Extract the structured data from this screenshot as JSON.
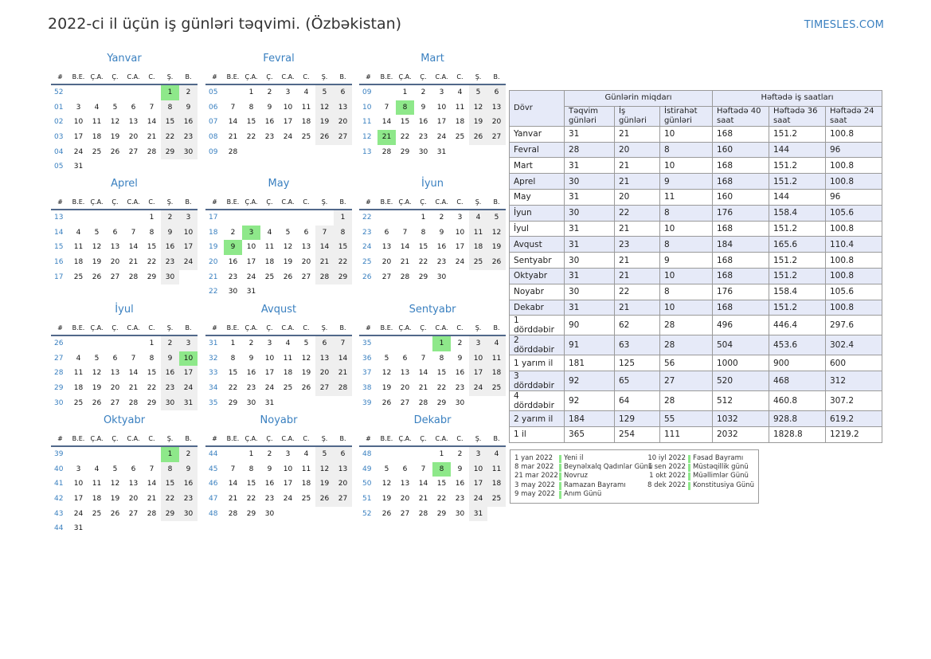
{
  "header": {
    "title": "2022-ci il üçün iş günləri təqvimi. (Özbəkistan)",
    "site": "TIMESLES.COM"
  },
  "weekday_headers": [
    "#",
    "B.E.",
    "Ç.A.",
    "Ç.",
    "C.A.",
    "C.",
    "Ş.",
    "B."
  ],
  "months": [
    {
      "name": "Yanvar",
      "rows": [
        [
          "52",
          "",
          "",
          "",
          "",
          "",
          "1",
          "2"
        ],
        [
          "01",
          "3",
          "4",
          "5",
          "6",
          "7",
          "8",
          "9"
        ],
        [
          "02",
          "10",
          "11",
          "12",
          "13",
          "14",
          "15",
          "16"
        ],
        [
          "03",
          "17",
          "18",
          "19",
          "20",
          "21",
          "22",
          "23"
        ],
        [
          "04",
          "24",
          "25",
          "26",
          "27",
          "28",
          "29",
          "30"
        ],
        [
          "05",
          "31",
          "",
          "",
          "",
          "",
          "",
          ""
        ]
      ],
      "holidays": [
        "1"
      ]
    },
    {
      "name": "Fevral",
      "rows": [
        [
          "05",
          "",
          "1",
          "2",
          "3",
          "4",
          "5",
          "6"
        ],
        [
          "06",
          "7",
          "8",
          "9",
          "10",
          "11",
          "12",
          "13"
        ],
        [
          "07",
          "14",
          "15",
          "16",
          "17",
          "18",
          "19",
          "20"
        ],
        [
          "08",
          "21",
          "22",
          "23",
          "24",
          "25",
          "26",
          "27"
        ],
        [
          "09",
          "28",
          "",
          "",
          "",
          "",
          "",
          ""
        ]
      ],
      "holidays": []
    },
    {
      "name": "Mart",
      "rows": [
        [
          "09",
          "",
          "1",
          "2",
          "3",
          "4",
          "5",
          "6"
        ],
        [
          "10",
          "7",
          "8",
          "9",
          "10",
          "11",
          "12",
          "13"
        ],
        [
          "11",
          "14",
          "15",
          "16",
          "17",
          "18",
          "19",
          "20"
        ],
        [
          "12",
          "21",
          "22",
          "23",
          "24",
          "25",
          "26",
          "27"
        ],
        [
          "13",
          "28",
          "29",
          "30",
          "31",
          "",
          "",
          ""
        ]
      ],
      "holidays": [
        "8",
        "21"
      ]
    },
    {
      "name": "Aprel",
      "rows": [
        [
          "13",
          "",
          "",
          "",
          "",
          "1",
          "2",
          "3"
        ],
        [
          "14",
          "4",
          "5",
          "6",
          "7",
          "8",
          "9",
          "10"
        ],
        [
          "15",
          "11",
          "12",
          "13",
          "14",
          "15",
          "16",
          "17"
        ],
        [
          "16",
          "18",
          "19",
          "20",
          "21",
          "22",
          "23",
          "24"
        ],
        [
          "17",
          "25",
          "26",
          "27",
          "28",
          "29",
          "30",
          ""
        ]
      ],
      "holidays": []
    },
    {
      "name": "May",
      "rows": [
        [
          "17",
          "",
          "",
          "",
          "",
          "",
          "",
          "1"
        ],
        [
          "18",
          "2",
          "3",
          "4",
          "5",
          "6",
          "7",
          "8"
        ],
        [
          "19",
          "9",
          "10",
          "11",
          "12",
          "13",
          "14",
          "15"
        ],
        [
          "20",
          "16",
          "17",
          "18",
          "19",
          "20",
          "21",
          "22"
        ],
        [
          "21",
          "23",
          "24",
          "25",
          "26",
          "27",
          "28",
          "29"
        ],
        [
          "22",
          "30",
          "31",
          "",
          "",
          "",
          "",
          ""
        ]
      ],
      "holidays": [
        "3",
        "9"
      ]
    },
    {
      "name": "İyun",
      "rows": [
        [
          "22",
          "",
          "",
          "1",
          "2",
          "3",
          "4",
          "5"
        ],
        [
          "23",
          "6",
          "7",
          "8",
          "9",
          "10",
          "11",
          "12"
        ],
        [
          "24",
          "13",
          "14",
          "15",
          "16",
          "17",
          "18",
          "19"
        ],
        [
          "25",
          "20",
          "21",
          "22",
          "23",
          "24",
          "25",
          "26"
        ],
        [
          "26",
          "27",
          "28",
          "29",
          "30",
          "",
          "",
          ""
        ]
      ],
      "holidays": []
    },
    {
      "name": "İyul",
      "rows": [
        [
          "26",
          "",
          "",
          "",
          "",
          "1",
          "2",
          "3"
        ],
        [
          "27",
          "4",
          "5",
          "6",
          "7",
          "8",
          "9",
          "10"
        ],
        [
          "28",
          "11",
          "12",
          "13",
          "14",
          "15",
          "16",
          "17"
        ],
        [
          "29",
          "18",
          "19",
          "20",
          "21",
          "22",
          "23",
          "24"
        ],
        [
          "30",
          "25",
          "26",
          "27",
          "28",
          "29",
          "30",
          "31"
        ]
      ],
      "holidays": [
        "10"
      ]
    },
    {
      "name": "Avqust",
      "rows": [
        [
          "31",
          "1",
          "2",
          "3",
          "4",
          "5",
          "6",
          "7"
        ],
        [
          "32",
          "8",
          "9",
          "10",
          "11",
          "12",
          "13",
          "14"
        ],
        [
          "33",
          "15",
          "16",
          "17",
          "18",
          "19",
          "20",
          "21"
        ],
        [
          "34",
          "22",
          "23",
          "24",
          "25",
          "26",
          "27",
          "28"
        ],
        [
          "35",
          "29",
          "30",
          "31",
          "",
          "",
          "",
          ""
        ]
      ],
      "holidays": []
    },
    {
      "name": "Sentyabr",
      "rows": [
        [
          "35",
          "",
          "",
          "",
          "1",
          "2",
          "3",
          "4"
        ],
        [
          "36",
          "5",
          "6",
          "7",
          "8",
          "9",
          "10",
          "11"
        ],
        [
          "37",
          "12",
          "13",
          "14",
          "15",
          "16",
          "17",
          "18"
        ],
        [
          "38",
          "19",
          "20",
          "21",
          "22",
          "23",
          "24",
          "25"
        ],
        [
          "39",
          "26",
          "27",
          "28",
          "29",
          "30",
          "",
          ""
        ]
      ],
      "holidays": [
        "1"
      ]
    },
    {
      "name": "Oktyabr",
      "rows": [
        [
          "39",
          "",
          "",
          "",
          "",
          "",
          "1",
          "2"
        ],
        [
          "40",
          "3",
          "4",
          "5",
          "6",
          "7",
          "8",
          "9"
        ],
        [
          "41",
          "10",
          "11",
          "12",
          "13",
          "14",
          "15",
          "16"
        ],
        [
          "42",
          "17",
          "18",
          "19",
          "20",
          "21",
          "22",
          "23"
        ],
        [
          "43",
          "24",
          "25",
          "26",
          "27",
          "28",
          "29",
          "30"
        ],
        [
          "44",
          "31",
          "",
          "",
          "",
          "",
          "",
          ""
        ]
      ],
      "holidays": [
        "1"
      ]
    },
    {
      "name": "Noyabr",
      "rows": [
        [
          "44",
          "",
          "1",
          "2",
          "3",
          "4",
          "5",
          "6"
        ],
        [
          "45",
          "7",
          "8",
          "9",
          "10",
          "11",
          "12",
          "13"
        ],
        [
          "46",
          "14",
          "15",
          "16",
          "17",
          "18",
          "19",
          "20"
        ],
        [
          "47",
          "21",
          "22",
          "23",
          "24",
          "25",
          "26",
          "27"
        ],
        [
          "48",
          "28",
          "29",
          "30",
          "",
          "",
          "",
          ""
        ]
      ],
      "holidays": []
    },
    {
      "name": "Dekabr",
      "rows": [
        [
          "48",
          "",
          "",
          "",
          "1",
          "2",
          "3",
          "4"
        ],
        [
          "49",
          "5",
          "6",
          "7",
          "8",
          "9",
          "10",
          "11"
        ],
        [
          "50",
          "12",
          "13",
          "14",
          "15",
          "16",
          "17",
          "18"
        ],
        [
          "51",
          "19",
          "20",
          "21",
          "22",
          "23",
          "24",
          "25"
        ],
        [
          "52",
          "26",
          "27",
          "28",
          "29",
          "30",
          "31",
          ""
        ]
      ],
      "holidays": [
        "8"
      ]
    }
  ],
  "summary": {
    "col_period": "Dövr",
    "group_days": "Günlərin miqdarı",
    "group_hours": "Həftədə iş saatları",
    "col_calendar": "Təqvim günləri",
    "col_work": "İş günləri",
    "col_rest": "İstirahət günləri",
    "col_h40": "Həftədə 40 saat",
    "col_h36": "Həftədə 36 saat",
    "col_h24": "Həftədə 24 saat",
    "rows": [
      [
        "Yanvar",
        "31",
        "21",
        "10",
        "168",
        "151.2",
        "100.8"
      ],
      [
        "Fevral",
        "28",
        "20",
        "8",
        "160",
        "144",
        "96"
      ],
      [
        "Mart",
        "31",
        "21",
        "10",
        "168",
        "151.2",
        "100.8"
      ],
      [
        "Aprel",
        "30",
        "21",
        "9",
        "168",
        "151.2",
        "100.8"
      ],
      [
        "May",
        "31",
        "20",
        "11",
        "160",
        "144",
        "96"
      ],
      [
        "İyun",
        "30",
        "22",
        "8",
        "176",
        "158.4",
        "105.6"
      ],
      [
        "İyul",
        "31",
        "21",
        "10",
        "168",
        "151.2",
        "100.8"
      ],
      [
        "Avqust",
        "31",
        "23",
        "8",
        "184",
        "165.6",
        "110.4"
      ],
      [
        "Sentyabr",
        "30",
        "21",
        "9",
        "168",
        "151.2",
        "100.8"
      ],
      [
        "Oktyabr",
        "31",
        "21",
        "10",
        "168",
        "151.2",
        "100.8"
      ],
      [
        "Noyabr",
        "30",
        "22",
        "8",
        "176",
        "158.4",
        "105.6"
      ],
      [
        "Dekabr",
        "31",
        "21",
        "10",
        "168",
        "151.2",
        "100.8"
      ],
      [
        "1 dörddəbir",
        "90",
        "62",
        "28",
        "496",
        "446.4",
        "297.6"
      ],
      [
        "2 dörddəbir",
        "91",
        "63",
        "28",
        "504",
        "453.6",
        "302.4"
      ],
      [
        "1 yarım il",
        "181",
        "125",
        "56",
        "1000",
        "900",
        "600"
      ],
      [
        "3 dörddəbir",
        "92",
        "65",
        "27",
        "520",
        "468",
        "312"
      ],
      [
        "4 dörddəbir",
        "92",
        "64",
        "28",
        "512",
        "460.8",
        "307.2"
      ],
      [
        "2 yarım il",
        "184",
        "129",
        "55",
        "1032",
        "928.8",
        "619.2"
      ],
      [
        "1 il",
        "365",
        "254",
        "111",
        "2032",
        "1828.8",
        "1219.2"
      ]
    ]
  },
  "legend": {
    "left": [
      {
        "date": "1 yan 2022",
        "name": "Yeni il"
      },
      {
        "date": "8 mar 2022",
        "name": "Beynəlxalq Qadınlar Günü"
      },
      {
        "date": "21 mar 2022",
        "name": "Novruz"
      },
      {
        "date": "3 may 2022",
        "name": "Ramazan Bayramı"
      },
      {
        "date": "9 may 2022",
        "name": "Anım Günü"
      }
    ],
    "right": [
      {
        "date": "10 iyl 2022",
        "name": "Fəsad Bayramı"
      },
      {
        "date": "1 sen 2022",
        "name": "Müstəqillik günü"
      },
      {
        "date": "1 okt 2022",
        "name": "Müəllimlər Günü"
      },
      {
        "date": "8 dek 2022",
        "name": "Konstitusiya Günü"
      }
    ]
  },
  "colors": {
    "accent": "#3a80c0",
    "holiday": "#8ee88a",
    "weekend": "#efefef",
    "table_header": "#e6eaf8",
    "rule": "#51688a"
  }
}
